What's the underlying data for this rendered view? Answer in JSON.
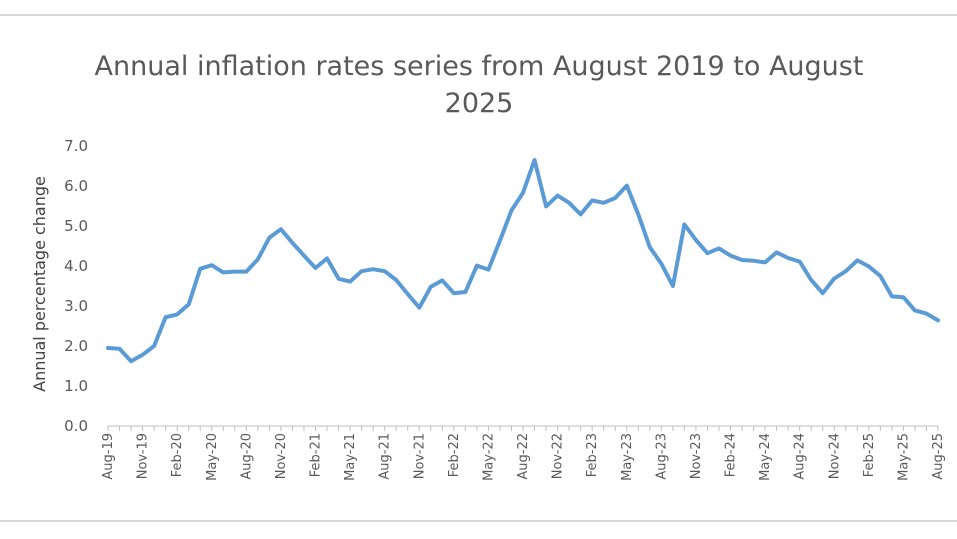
{
  "chart_data": {
    "type": "line",
    "title": "Annual inflation rates series from August 2019 to August 2025",
    "xlabel": "",
    "ylabel": "Annual percentage change",
    "ylim": [
      0,
      7
    ],
    "yticks": [
      "0.0",
      "1.0",
      "2.0",
      "3.0",
      "4.0",
      "5.0",
      "6.0",
      "7.0"
    ],
    "grid": false,
    "legend": "none",
    "color": "#5b9bd5",
    "x": [
      "Aug-19",
      "Sep-19",
      "Oct-19",
      "Nov-19",
      "Dec-19",
      "Jan-20",
      "Feb-20",
      "Mar-20",
      "Apr-20",
      "May-20",
      "Jun-20",
      "Jul-20",
      "Aug-20",
      "Sep-20",
      "Oct-20",
      "Nov-20",
      "Dec-20",
      "Jan-21",
      "Feb-21",
      "Mar-21",
      "Apr-21",
      "May-21",
      "Jun-21",
      "Jul-21",
      "Aug-21",
      "Sep-21",
      "Oct-21",
      "Nov-21",
      "Dec-21",
      "Jan-22",
      "Feb-22",
      "Mar-22",
      "Apr-22",
      "May-22",
      "Jun-22",
      "Jul-22",
      "Aug-22",
      "Sep-22",
      "Oct-22",
      "Nov-22",
      "Dec-22",
      "Jan-23",
      "Feb-23",
      "Mar-23",
      "Apr-23",
      "May-23",
      "Jun-23",
      "Jul-23",
      "Aug-23",
      "Sep-23",
      "Oct-23",
      "Nov-23",
      "Dec-23",
      "Jan-24",
      "Feb-24",
      "Mar-24",
      "Apr-24",
      "May-24",
      "Jun-24",
      "Jul-24",
      "Aug-24",
      "Sep-24",
      "Oct-24",
      "Nov-24",
      "Dec-24",
      "Jan-25",
      "Feb-25",
      "Mar-25",
      "Apr-25",
      "May-25",
      "Jun-25",
      "Jul-25",
      "Aug-25"
    ],
    "tick_labels": [
      "Aug-19",
      "Nov-19",
      "Feb-20",
      "May-20",
      "Aug-20",
      "Nov-20",
      "Feb-21",
      "May-21",
      "Aug-21",
      "Nov-21",
      "Feb-22",
      "May-22",
      "Aug-22",
      "Nov-22",
      "Feb-23",
      "May-23",
      "Aug-23",
      "Nov-23",
      "Feb-24",
      "May-24",
      "Aug-24",
      "Nov-24",
      "Feb-25",
      "May-25",
      "Aug-25"
    ],
    "series": [
      {
        "values": [
          1.95,
          1.93,
          1.62,
          1.78,
          2.0,
          2.72,
          2.79,
          3.04,
          3.93,
          4.02,
          3.84,
          3.86,
          3.86,
          4.17,
          4.71,
          4.92,
          4.58,
          4.26,
          3.95,
          4.19,
          3.68,
          3.61,
          3.87,
          3.92,
          3.87,
          3.65,
          3.3,
          2.96,
          3.48,
          3.64,
          3.32,
          3.35,
          4.01,
          3.91,
          4.63,
          5.39,
          5.83,
          6.65,
          5.49,
          5.76,
          5.58,
          5.29,
          5.64,
          5.58,
          5.7,
          6.01,
          5.29,
          4.47,
          4.06,
          3.5,
          5.04,
          4.65,
          4.32,
          4.44,
          4.26,
          4.15,
          4.13,
          4.09,
          4.34,
          4.2,
          4.11,
          3.65,
          3.32,
          3.69,
          3.87,
          4.14,
          3.99,
          3.75,
          3.24,
          3.22,
          2.89,
          2.81,
          2.64
        ]
      }
    ]
  }
}
